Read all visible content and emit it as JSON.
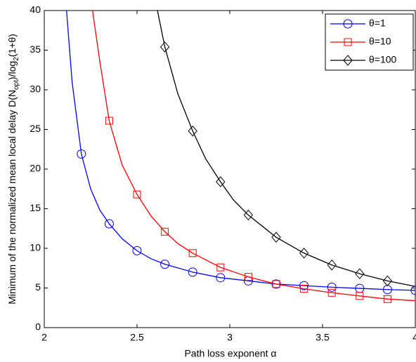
{
  "chart_data": {
    "type": "line",
    "xlabel": "Path loss exponent α",
    "ylabel_parts": [
      "Minimum of the normalized mean local delay D(N",
      "opt",
      ")/log",
      "2",
      "(1+θ)"
    ],
    "xlim": [
      2,
      4
    ],
    "xticks": [
      2,
      2.5,
      3,
      3.5,
      4
    ],
    "ylim": [
      0,
      40
    ],
    "yticks": [
      0,
      5,
      10,
      15,
      20,
      25,
      30,
      35,
      40
    ],
    "legend": "upper right",
    "series": [
      {
        "name": "θ=1",
        "color": "#0000ff",
        "marker": "circle",
        "x": [
          2.12,
          2.15,
          2.2,
          2.25,
          2.3,
          2.35,
          2.42,
          2.5,
          2.575,
          2.65,
          2.8,
          2.95,
          3.1,
          3.25,
          3.4,
          3.55,
          3.7,
          3.85,
          4.0
        ],
        "values": [
          40,
          31,
          21.9,
          17.5,
          14.8,
          13.1,
          11.2,
          9.7,
          8.7,
          8.0,
          7.0,
          6.3,
          5.9,
          5.5,
          5.3,
          5.1,
          4.95,
          4.8,
          4.7
        ],
        "marker_x": [
          2.2,
          2.35,
          2.5,
          2.65,
          2.8,
          2.95,
          3.1,
          3.25,
          3.4,
          3.55,
          3.7,
          3.85,
          4.0
        ],
        "marker_values": [
          21.9,
          13.1,
          9.7,
          8.0,
          7.0,
          6.3,
          5.9,
          5.5,
          5.3,
          5.1,
          4.95,
          4.8,
          4.7
        ]
      },
      {
        "name": "θ=10",
        "color": "#ff0000",
        "marker": "square",
        "x": [
          2.26,
          2.3,
          2.35,
          2.42,
          2.5,
          2.575,
          2.65,
          2.72,
          2.8,
          2.95,
          3.1,
          3.25,
          3.4,
          3.55,
          3.7,
          3.85,
          4.0
        ],
        "values": [
          40,
          33.5,
          26.1,
          20.5,
          16.8,
          14.1,
          12.1,
          10.6,
          9.4,
          7.6,
          6.4,
          5.5,
          4.9,
          4.4,
          4.0,
          3.6,
          3.4
        ],
        "marker_x": [
          2.35,
          2.5,
          2.65,
          2.8,
          2.95,
          3.1,
          3.25,
          3.4,
          3.55,
          3.7,
          3.85
        ],
        "marker_values": [
          26.1,
          16.8,
          12.1,
          9.4,
          7.6,
          6.4,
          5.5,
          4.9,
          4.4,
          4.0,
          3.6
        ]
      },
      {
        "name": "θ=100",
        "color": "#000000",
        "marker": "diamond",
        "x": [
          2.61,
          2.65,
          2.72,
          2.8,
          2.87,
          2.95,
          3.02,
          3.1,
          3.25,
          3.4,
          3.55,
          3.7,
          3.85,
          4.0
        ],
        "values": [
          40,
          35.4,
          29.5,
          24.8,
          21.3,
          18.4,
          16.1,
          14.2,
          11.4,
          9.4,
          7.9,
          6.8,
          5.9,
          5.2
        ],
        "marker_x": [
          2.65,
          2.8,
          2.95,
          3.1,
          3.25,
          3.4,
          3.55,
          3.7,
          3.85
        ],
        "marker_values": [
          35.4,
          24.8,
          18.4,
          14.2,
          11.4,
          9.4,
          7.9,
          6.8,
          5.9
        ]
      }
    ]
  }
}
